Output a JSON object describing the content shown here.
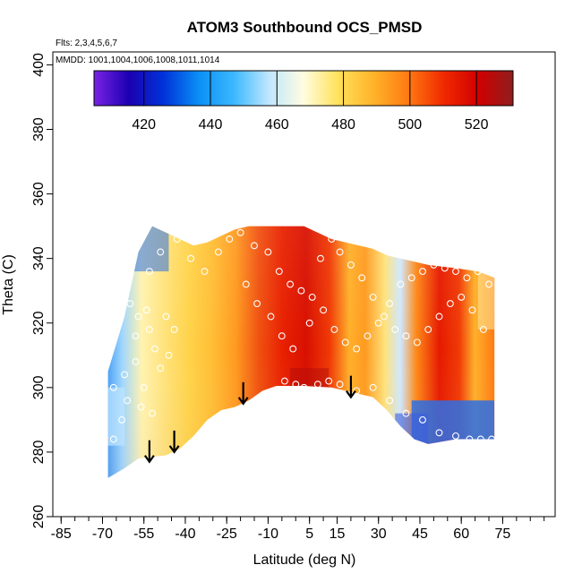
{
  "chart_data": {
    "type": "heatmap",
    "title": "ATOM3 Southbound OCS_PMSD",
    "flights_note": "Flts: 2,3,4,5,6,7",
    "dates_note": "MMDD: 1001,1004,1006,1008,1011,1014",
    "xlabel": "Latitude (deg N)",
    "ylabel": "Theta (C)",
    "xlim": [
      -88,
      94
    ],
    "ylim": [
      260,
      404
    ],
    "x_ticks": [
      -85,
      -70,
      -55,
      -40,
      -25,
      -10,
      5,
      15,
      30,
      45,
      60,
      75
    ],
    "y_ticks": [
      260,
      280,
      300,
      320,
      340,
      360,
      380,
      400
    ],
    "colorbar": {
      "range": [
        405,
        531
      ],
      "ticks": [
        420,
        440,
        460,
        480,
        500,
        520
      ],
      "colors": [
        "#7a22e6",
        "#1a00b0",
        "#0033d9",
        "#0a8ff5",
        "#3bb8ff",
        "#bfe6ff",
        "#fffde0",
        "#ffe15a",
        "#ffb32a",
        "#ff7a12",
        "#f02a00",
        "#d10000",
        "#8f1d1d"
      ]
    },
    "coverage_envelope": {
      "lat": [
        -68,
        -62,
        -57,
        -52,
        -47,
        -42,
        -37,
        -32,
        -27,
        -22,
        -17,
        -12,
        -7,
        3,
        13,
        18,
        23,
        28,
        33,
        38,
        43,
        48,
        58,
        66,
        72
      ],
      "theta_bottom": [
        272,
        275,
        278,
        278.5,
        279,
        281,
        285,
        290,
        293,
        294,
        296,
        299,
        300.5,
        300.5,
        300,
        299,
        298,
        297,
        293,
        288,
        284,
        282.5,
        284,
        284,
        284
      ],
      "theta_top": [
        305,
        322,
        342,
        350,
        348,
        346,
        344,
        345,
        347,
        349,
        350,
        350,
        350,
        350,
        346,
        345,
        344,
        343,
        341,
        340,
        339,
        338,
        337,
        336,
        334
      ]
    },
    "arrows": [
      {
        "lat": -53,
        "theta": 277
      },
      {
        "lat": -44,
        "theta": 280
      },
      {
        "lat": -19,
        "theta": 295
      },
      {
        "lat": 20,
        "theta": 297
      }
    ],
    "sample_points": [
      [
        -64,
        330
      ],
      [
        -60,
        326
      ],
      [
        -57,
        322
      ],
      [
        -53,
        318
      ],
      [
        -51,
        312
      ],
      [
        -58,
        308
      ],
      [
        -62,
        304
      ],
      [
        -66,
        300
      ],
      [
        -55,
        300
      ],
      [
        -49,
        306
      ],
      [
        -46,
        310
      ],
      [
        -54,
        324
      ],
      [
        -58,
        316
      ],
      [
        -47,
        322
      ],
      [
        -44,
        318
      ],
      [
        -61,
        296
      ],
      [
        -56,
        294
      ],
      [
        -52,
        292
      ],
      [
        -63,
        290
      ],
      [
        -66,
        284
      ],
      [
        -53,
        336
      ],
      [
        -49,
        342
      ],
      [
        -43,
        346
      ],
      [
        -38,
        340
      ],
      [
        -33,
        336
      ],
      [
        -28,
        342
      ],
      [
        -24,
        346
      ],
      [
        -20,
        348
      ],
      [
        -15,
        344
      ],
      [
        -10,
        342
      ],
      [
        -6,
        336
      ],
      [
        -2,
        332
      ],
      [
        2,
        330
      ],
      [
        6,
        328
      ],
      [
        10,
        324
      ],
      [
        14,
        318
      ],
      [
        18,
        314
      ],
      [
        22,
        312
      ],
      [
        26,
        316
      ],
      [
        30,
        320
      ],
      [
        34,
        326
      ],
      [
        38,
        332
      ],
      [
        42,
        334
      ],
      [
        46,
        336
      ],
      [
        50,
        338
      ],
      [
        54,
        337
      ],
      [
        58,
        336
      ],
      [
        62,
        334
      ],
      [
        66,
        336
      ],
      [
        70,
        332
      ],
      [
        -4,
        302
      ],
      [
        0,
        301
      ],
      [
        3,
        300
      ],
      [
        8,
        301
      ],
      [
        12,
        302
      ],
      [
        16,
        301
      ],
      [
        22,
        299
      ],
      [
        28,
        300
      ],
      [
        34,
        296
      ],
      [
        40,
        292
      ],
      [
        46,
        290
      ],
      [
        52,
        286
      ],
      [
        58,
        285
      ],
      [
        63,
        284
      ],
      [
        67,
        284
      ],
      [
        71,
        284
      ],
      [
        -18,
        332
      ],
      [
        -14,
        326
      ],
      [
        -9,
        322
      ],
      [
        -5,
        316
      ],
      [
        -1,
        312
      ],
      [
        5,
        320
      ],
      [
        9,
        340
      ],
      [
        13,
        346
      ],
      [
        16,
        342
      ],
      [
        20,
        338
      ],
      [
        24,
        334
      ],
      [
        28,
        328
      ],
      [
        32,
        322
      ],
      [
        36,
        318
      ],
      [
        40,
        316
      ],
      [
        44,
        314
      ],
      [
        48,
        318
      ],
      [
        52,
        322
      ],
      [
        56,
        326
      ],
      [
        60,
        328
      ],
      [
        64,
        324
      ],
      [
        68,
        318
      ]
    ]
  }
}
